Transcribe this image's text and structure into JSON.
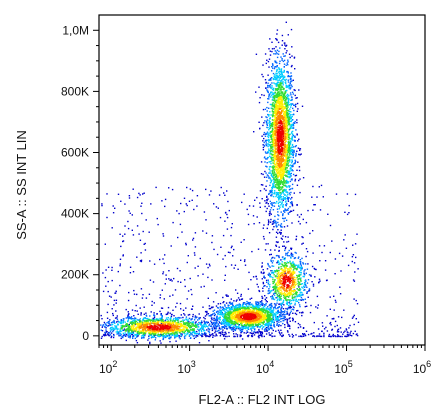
{
  "chart_data": {
    "type": "scatter",
    "style": "flow-cytometry density dot plot",
    "xlabel": "FL2-A :: FL2 INT LOG",
    "ylabel": "SS-A :: SS INT LIN",
    "x_scale": "log",
    "y_scale": "linear",
    "xlim": [
      70,
      1000000
    ],
    "ylim": [
      -30000,
      1050000
    ],
    "x_ticks": [
      {
        "value": 100,
        "base": "10",
        "exp": "2"
      },
      {
        "value": 1000,
        "base": "10",
        "exp": "3"
      },
      {
        "value": 10000,
        "base": "10",
        "exp": "4"
      },
      {
        "value": 100000,
        "base": "10",
        "exp": "5"
      },
      {
        "value": 1000000,
        "base": "10",
        "exp": "6"
      }
    ],
    "y_ticks": [
      {
        "value": 0,
        "label": "0"
      },
      {
        "value": 200000,
        "label": "200K"
      },
      {
        "value": 400000,
        "label": "400K"
      },
      {
        "value": 600000,
        "label": "600K"
      },
      {
        "value": 800000,
        "label": "800K"
      },
      {
        "value": 1000000,
        "label": "1,0M"
      }
    ],
    "grid": false,
    "populations": [
      {
        "x_center": 14000,
        "x_spread_decades": 0.09,
        "y_center": 650000,
        "y_spread": 130000,
        "points": 2600
      },
      {
        "x_center": 5500,
        "x_spread_decades": 0.22,
        "y_center": 65000,
        "y_spread": 22000,
        "points": 1700
      },
      {
        "x_center": 400,
        "x_spread_decades": 0.35,
        "y_center": 30000,
        "y_spread": 18000,
        "points": 1400
      },
      {
        "x_center": 17000,
        "x_spread_decades": 0.13,
        "y_center": 180000,
        "y_spread": 45000,
        "points": 800
      }
    ],
    "density_colors": [
      "#0000cc",
      "#0066ff",
      "#00ccff",
      "#33dd33",
      "#ffee00",
      "#ff8800",
      "#ee0000"
    ]
  }
}
